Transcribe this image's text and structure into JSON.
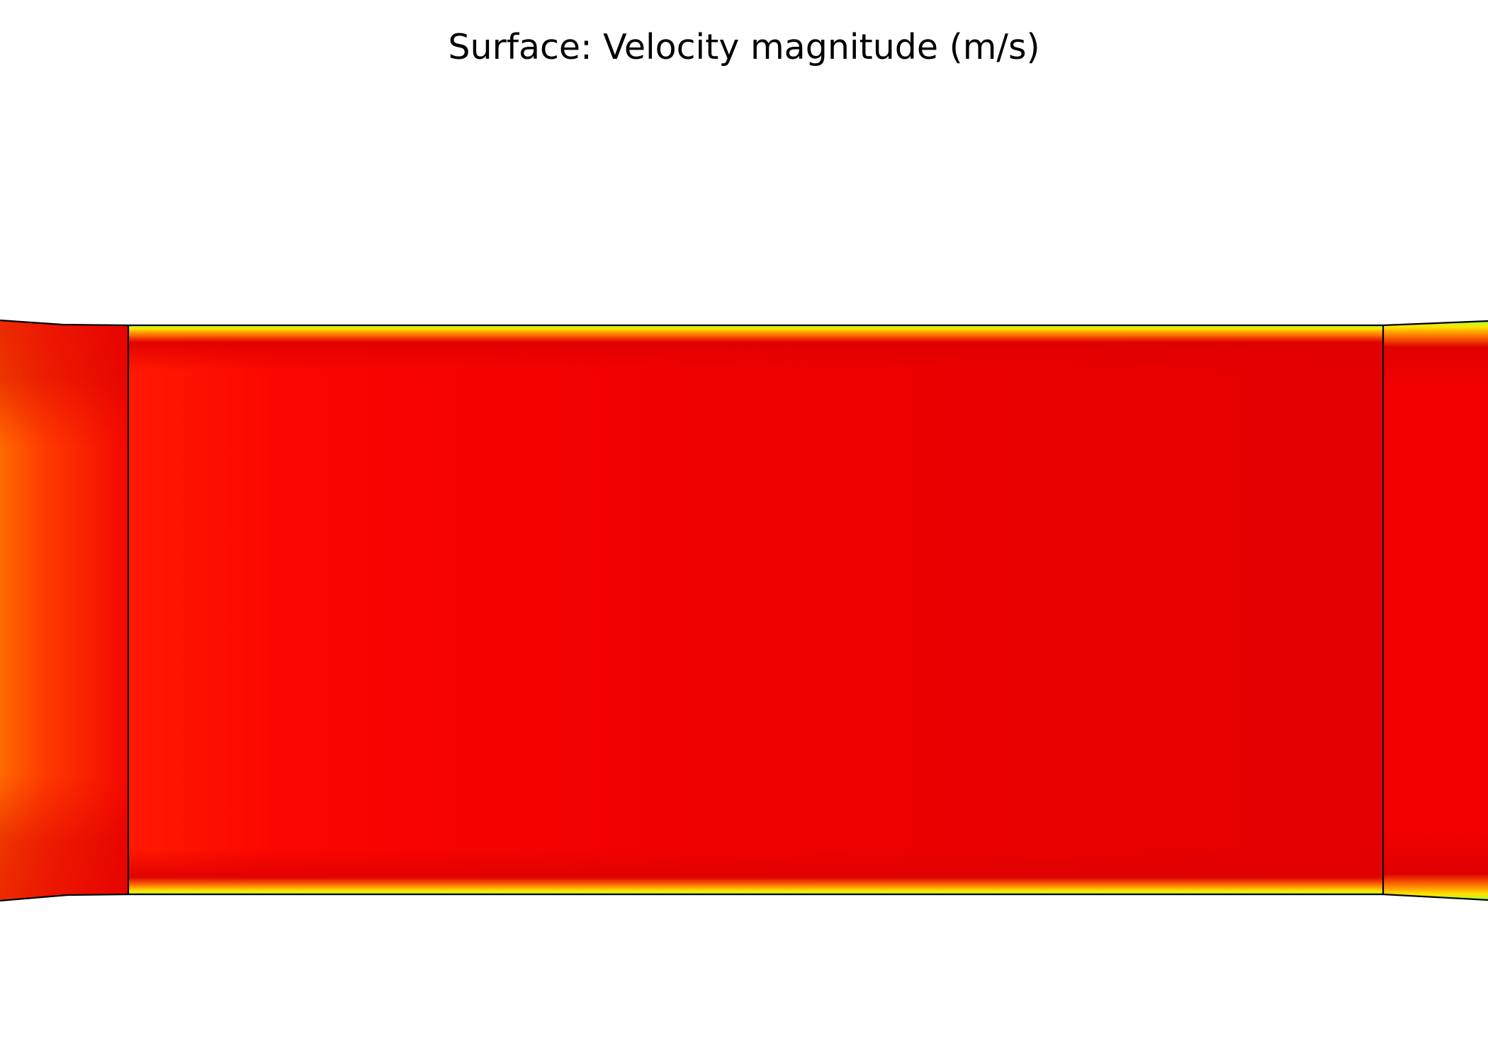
{
  "plot": {
    "title": "Surface: Velocity magnitude (m/s)",
    "colormap": "rainbow",
    "colors": {
      "core_dark": "#e10000",
      "core_mid": "#f40000",
      "core_bright": "#ff0a00",
      "inlet_orange": "#ff6a00",
      "wall_yellow": "#ffee00",
      "wall_green": "#8cff4a",
      "outline": "#000000"
    }
  }
}
